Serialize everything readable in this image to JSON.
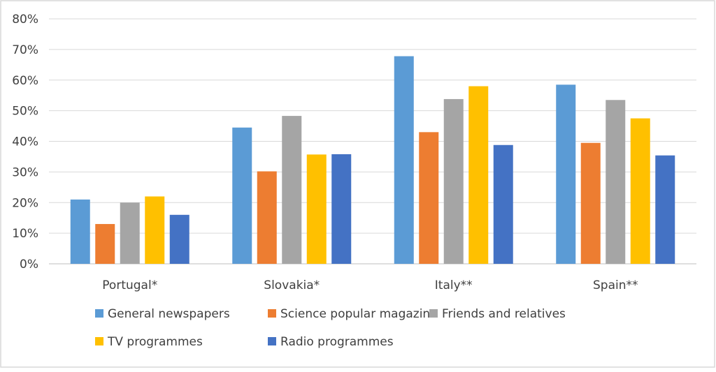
{
  "chart_data": {
    "type": "bar",
    "categories": [
      "Portugal*",
      "Slovakia*",
      "Italy**",
      "Spain**"
    ],
    "series": [
      {
        "name": "General newspapers",
        "color": "#5B9BD5",
        "values": [
          21,
          44.5,
          67.8,
          58.5
        ]
      },
      {
        "name": "Science popular magazine",
        "color": "#ED7D31",
        "values": [
          13,
          30.2,
          43,
          39.5
        ]
      },
      {
        "name": "Friends and relatives",
        "color": "#A5A5A5",
        "values": [
          20,
          48.3,
          53.8,
          53.5
        ]
      },
      {
        "name": "TV programmes",
        "color": "#FFC000",
        "values": [
          22,
          35.7,
          58,
          47.5
        ]
      },
      {
        "name": "Radio programmes",
        "color": "#4472C4",
        "values": [
          16,
          35.8,
          38.8,
          35.4
        ]
      }
    ],
    "yticks": [
      "0%",
      "10%",
      "20%",
      "30%",
      "40%",
      "50%",
      "60%",
      "70%",
      "80%"
    ],
    "ylim": [
      0,
      80
    ],
    "grid": true,
    "legend_position": "bottom"
  }
}
